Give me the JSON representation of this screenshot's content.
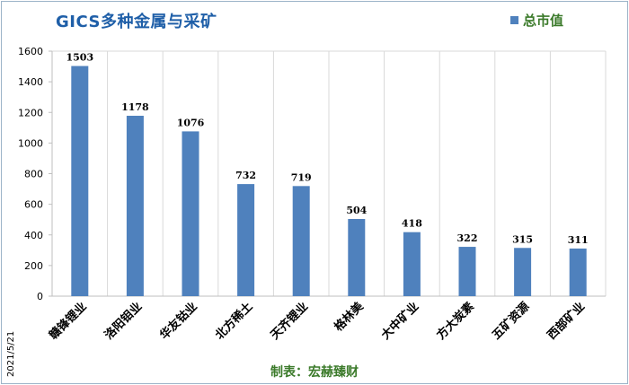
{
  "header": {
    "title": "GICS多种金属与采矿"
  },
  "footer": {
    "date": "2021/5/21",
    "credit": "制表：宏赫臻财"
  },
  "colors": {
    "bar": "#4f81bd",
    "title": "#1f5fa8",
    "legend_text": "#3b7a2a",
    "grid": "#d9d9d9"
  },
  "chart_data": {
    "type": "bar",
    "title": "GICS多种金属与采矿",
    "xlabel": "",
    "ylabel": "",
    "categories": [
      "赣锋锂业",
      "洛阳钼业",
      "华友钴业",
      "北方稀土",
      "天齐锂业",
      "格林美",
      "大中矿业",
      "方大炭素",
      "五矿资源",
      "西部矿业"
    ],
    "series": [
      {
        "name": "总市值",
        "values": [
          1503,
          1178,
          1076,
          732,
          719,
          504,
          418,
          322,
          315,
          311
        ]
      }
    ],
    "ylim": [
      0,
      1600
    ],
    "yticks": [
      0,
      200,
      400,
      600,
      800,
      1000,
      1200,
      1400,
      1600
    ],
    "grid": "vertical-category-separators",
    "legend_position": "top-right"
  }
}
